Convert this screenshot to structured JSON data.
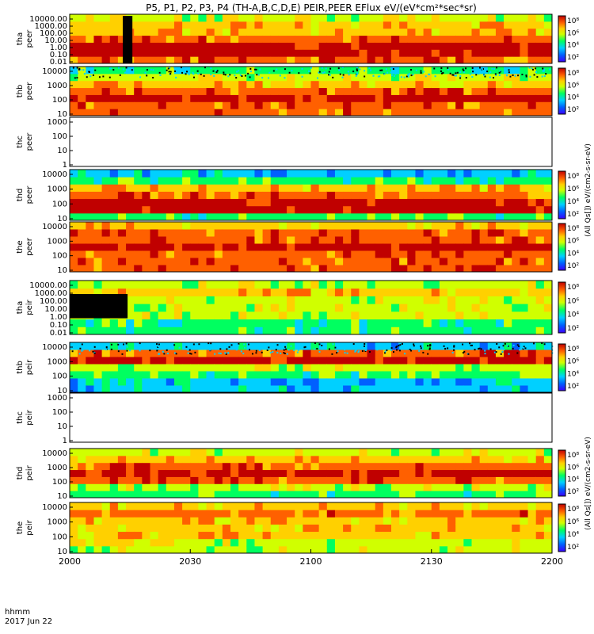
{
  "chart_data": {
    "type": "heatmap",
    "title": "P5, P1, P2, P3, P4 (TH-A,B,C,D,E) PEIR,PEER EFlux eV/(eV*cm²*sec*sr)",
    "x_ticks": [
      "2000",
      "2030",
      "2100",
      "2130",
      "2200"
    ],
    "x_range": [
      "2017-06-22T20:00",
      "2017-06-22T22:00"
    ],
    "x_label": [
      "hhmm",
      "2017 Jun 22"
    ],
    "y_scale": "log",
    "colormap": [
      "#3b00ff",
      "#0060ff",
      "#00d0ff",
      "#00ff60",
      "#d0ff00",
      "#ffd000",
      "#ff6000",
      "#c00000"
    ],
    "colorbar_range_label": "10² – 10⁸",
    "colorbar_ticks": [
      "10⁸",
      "10⁶",
      "10⁴",
      "10²"
    ],
    "colorbar_titles": [
      "(All Qs[]) eV/(cm2-s-sr-eV)",
      "(All Qs[]) eV/(cm2-s-sr-eV)"
    ],
    "panels": [
      {
        "probe": "tha",
        "species": "peer",
        "yticks": [
          "10000.00",
          "1000.00",
          "100.00",
          "10.00",
          "1.00",
          "0.10",
          "0.01"
        ],
        "has_colorbar": true
      },
      {
        "probe": "thb",
        "species": "peer",
        "yticks": [
          "10000",
          "1000",
          "100",
          "10"
        ],
        "has_colorbar": true
      },
      {
        "probe": "thc",
        "species": "peer",
        "yticks": [
          "1000",
          "100",
          "10",
          "1"
        ],
        "has_colorbar": false
      },
      {
        "probe": "thd",
        "species": "peer",
        "yticks": [
          "10000",
          "1000",
          "100",
          "10"
        ],
        "has_colorbar": true
      },
      {
        "probe": "the",
        "species": "peer",
        "yticks": [
          "10000",
          "1000",
          "100",
          "10"
        ],
        "has_colorbar": true
      },
      {
        "probe": "tha",
        "species": "peir",
        "yticks": [
          "10000.00",
          "1000.00",
          "100.00",
          "10.00",
          "1.00",
          "0.10",
          "0.01"
        ],
        "has_colorbar": true
      },
      {
        "probe": "thb",
        "species": "peir",
        "yticks": [
          "10000",
          "1000",
          "100",
          "10"
        ],
        "has_colorbar": true
      },
      {
        "probe": "thc",
        "species": "peir",
        "yticks": [
          "1000",
          "100",
          "10",
          "1"
        ],
        "has_colorbar": false
      },
      {
        "probe": "thd",
        "species": "peir",
        "yticks": [
          "10000",
          "1000",
          "100",
          "10"
        ],
        "has_colorbar": true
      },
      {
        "probe": "the",
        "species": "peir",
        "yticks": [
          "10000",
          "1000",
          "100",
          "10"
        ],
        "has_colorbar": true
      }
    ]
  }
}
